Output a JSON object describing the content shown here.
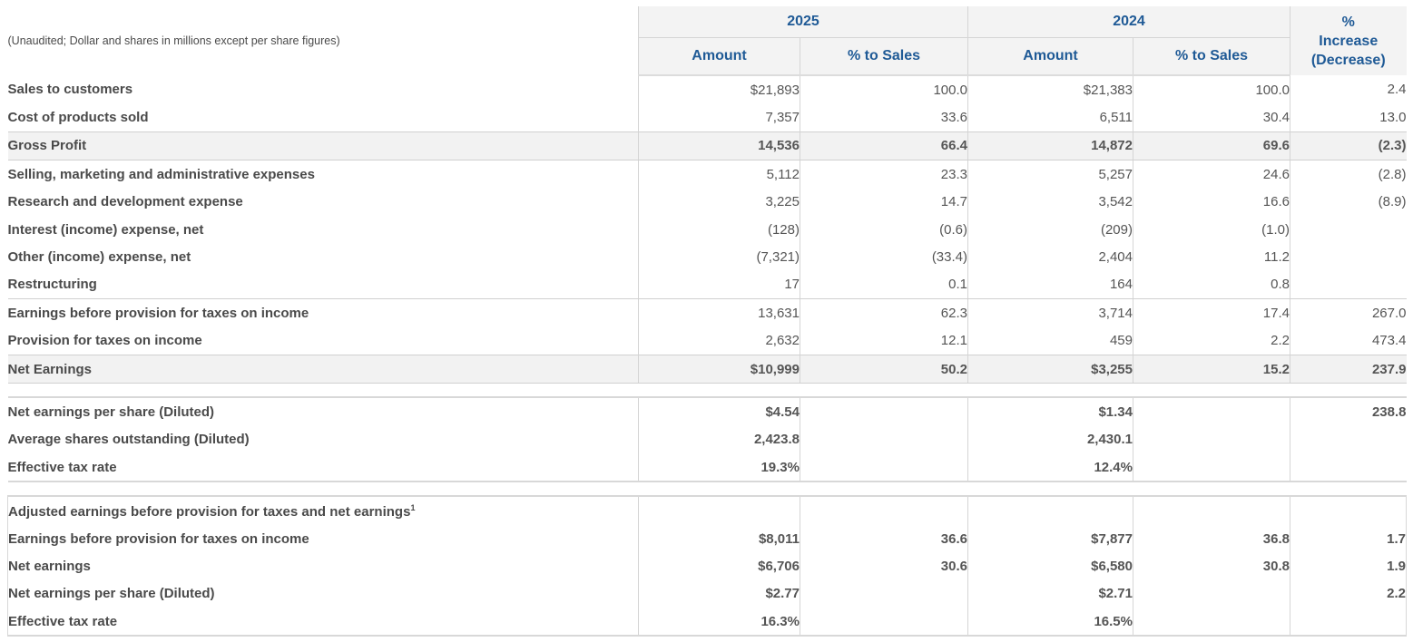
{
  "header": {
    "note": "(Unaudited; Dollar and shares in millions except per share figures)",
    "year_2025": "2025",
    "year_2024": "2024",
    "change_line1": "%",
    "change_line2": "Increase",
    "change_line3": "(Decrease)",
    "amount": "Amount",
    "pct_sales": "% to Sales"
  },
  "income": [
    {
      "label": "Sales to customers",
      "a25": "$21,893",
      "p25": "100.0",
      "a24": "$21,383",
      "p24": "100.0",
      "chg": "2.4"
    },
    {
      "label": "Cost of products sold",
      "a25": "7,357",
      "p25": "33.6",
      "a24": "6,511",
      "p24": "30.4",
      "chg": "13.0"
    },
    {
      "label": "Gross Profit",
      "a25": "14,536",
      "p25": "66.4",
      "a24": "14,872",
      "p24": "69.6",
      "chg": "(2.3)"
    },
    {
      "label": "Selling, marketing and administrative expenses",
      "a25": "5,112",
      "p25": "23.3",
      "a24": "5,257",
      "p24": "24.6",
      "chg": "(2.8)"
    },
    {
      "label": "Research and development expense",
      "a25": "3,225",
      "p25": "14.7",
      "a24": "3,542",
      "p24": "16.6",
      "chg": "(8.9)"
    },
    {
      "label": "Interest (income) expense, net",
      "a25": "(128)",
      "p25": "(0.6)",
      "a24": "(209)",
      "p24": "(1.0)",
      "chg": ""
    },
    {
      "label": "Other (income) expense, net",
      "a25": "(7,321)",
      "p25": "(33.4)",
      "a24": "2,404",
      "p24": "11.2",
      "chg": ""
    },
    {
      "label": "Restructuring",
      "a25": "17",
      "p25": "0.1",
      "a24": "164",
      "p24": "0.8",
      "chg": ""
    },
    {
      "label": "Earnings before provision for taxes on income",
      "a25": "13,631",
      "p25": "62.3",
      "a24": "3,714",
      "p24": "17.4",
      "chg": "267.0"
    },
    {
      "label": "Provision for taxes on income",
      "a25": "2,632",
      "p25": "12.1",
      "a24": "459",
      "p24": "2.2",
      "chg": "473.4"
    },
    {
      "label": "Net Earnings",
      "a25": "$10,999",
      "p25": "50.2",
      "a24": "$3,255",
      "p24": "15.2",
      "chg": "237.9"
    }
  ],
  "per_share": [
    {
      "label": "Net earnings per share (Diluted)",
      "a25": "$4.54",
      "a24": "$1.34",
      "chg": "238.8"
    },
    {
      "label": "Average shares outstanding (Diluted)",
      "a25": "2,423.8",
      "a24": "2,430.1",
      "chg": ""
    },
    {
      "label": "Effective tax rate",
      "a25": "19.3%",
      "a24": "12.4%",
      "chg": ""
    }
  ],
  "adjusted": {
    "title": "Adjusted earnings before provision for taxes and net earnings",
    "footnote": "1",
    "rows": [
      {
        "label": "Earnings before provision for taxes on income",
        "a25": "$8,011",
        "p25": "36.6",
        "a24": "$7,877",
        "p24": "36.8",
        "chg": "1.7"
      },
      {
        "label": "Net earnings",
        "a25": "$6,706",
        "p25": "30.6",
        "a24": "$6,580",
        "p24": "30.8",
        "chg": "1.9"
      },
      {
        "label": "Net earnings per share (Diluted)",
        "a25": "$2.77",
        "p25": "",
        "a24": "$2.71",
        "p24": "",
        "chg": "2.2"
      },
      {
        "label": "Effective tax rate",
        "a25": "16.3%",
        "p25": "",
        "a24": "16.5%",
        "p24": "",
        "chg": ""
      }
    ]
  }
}
